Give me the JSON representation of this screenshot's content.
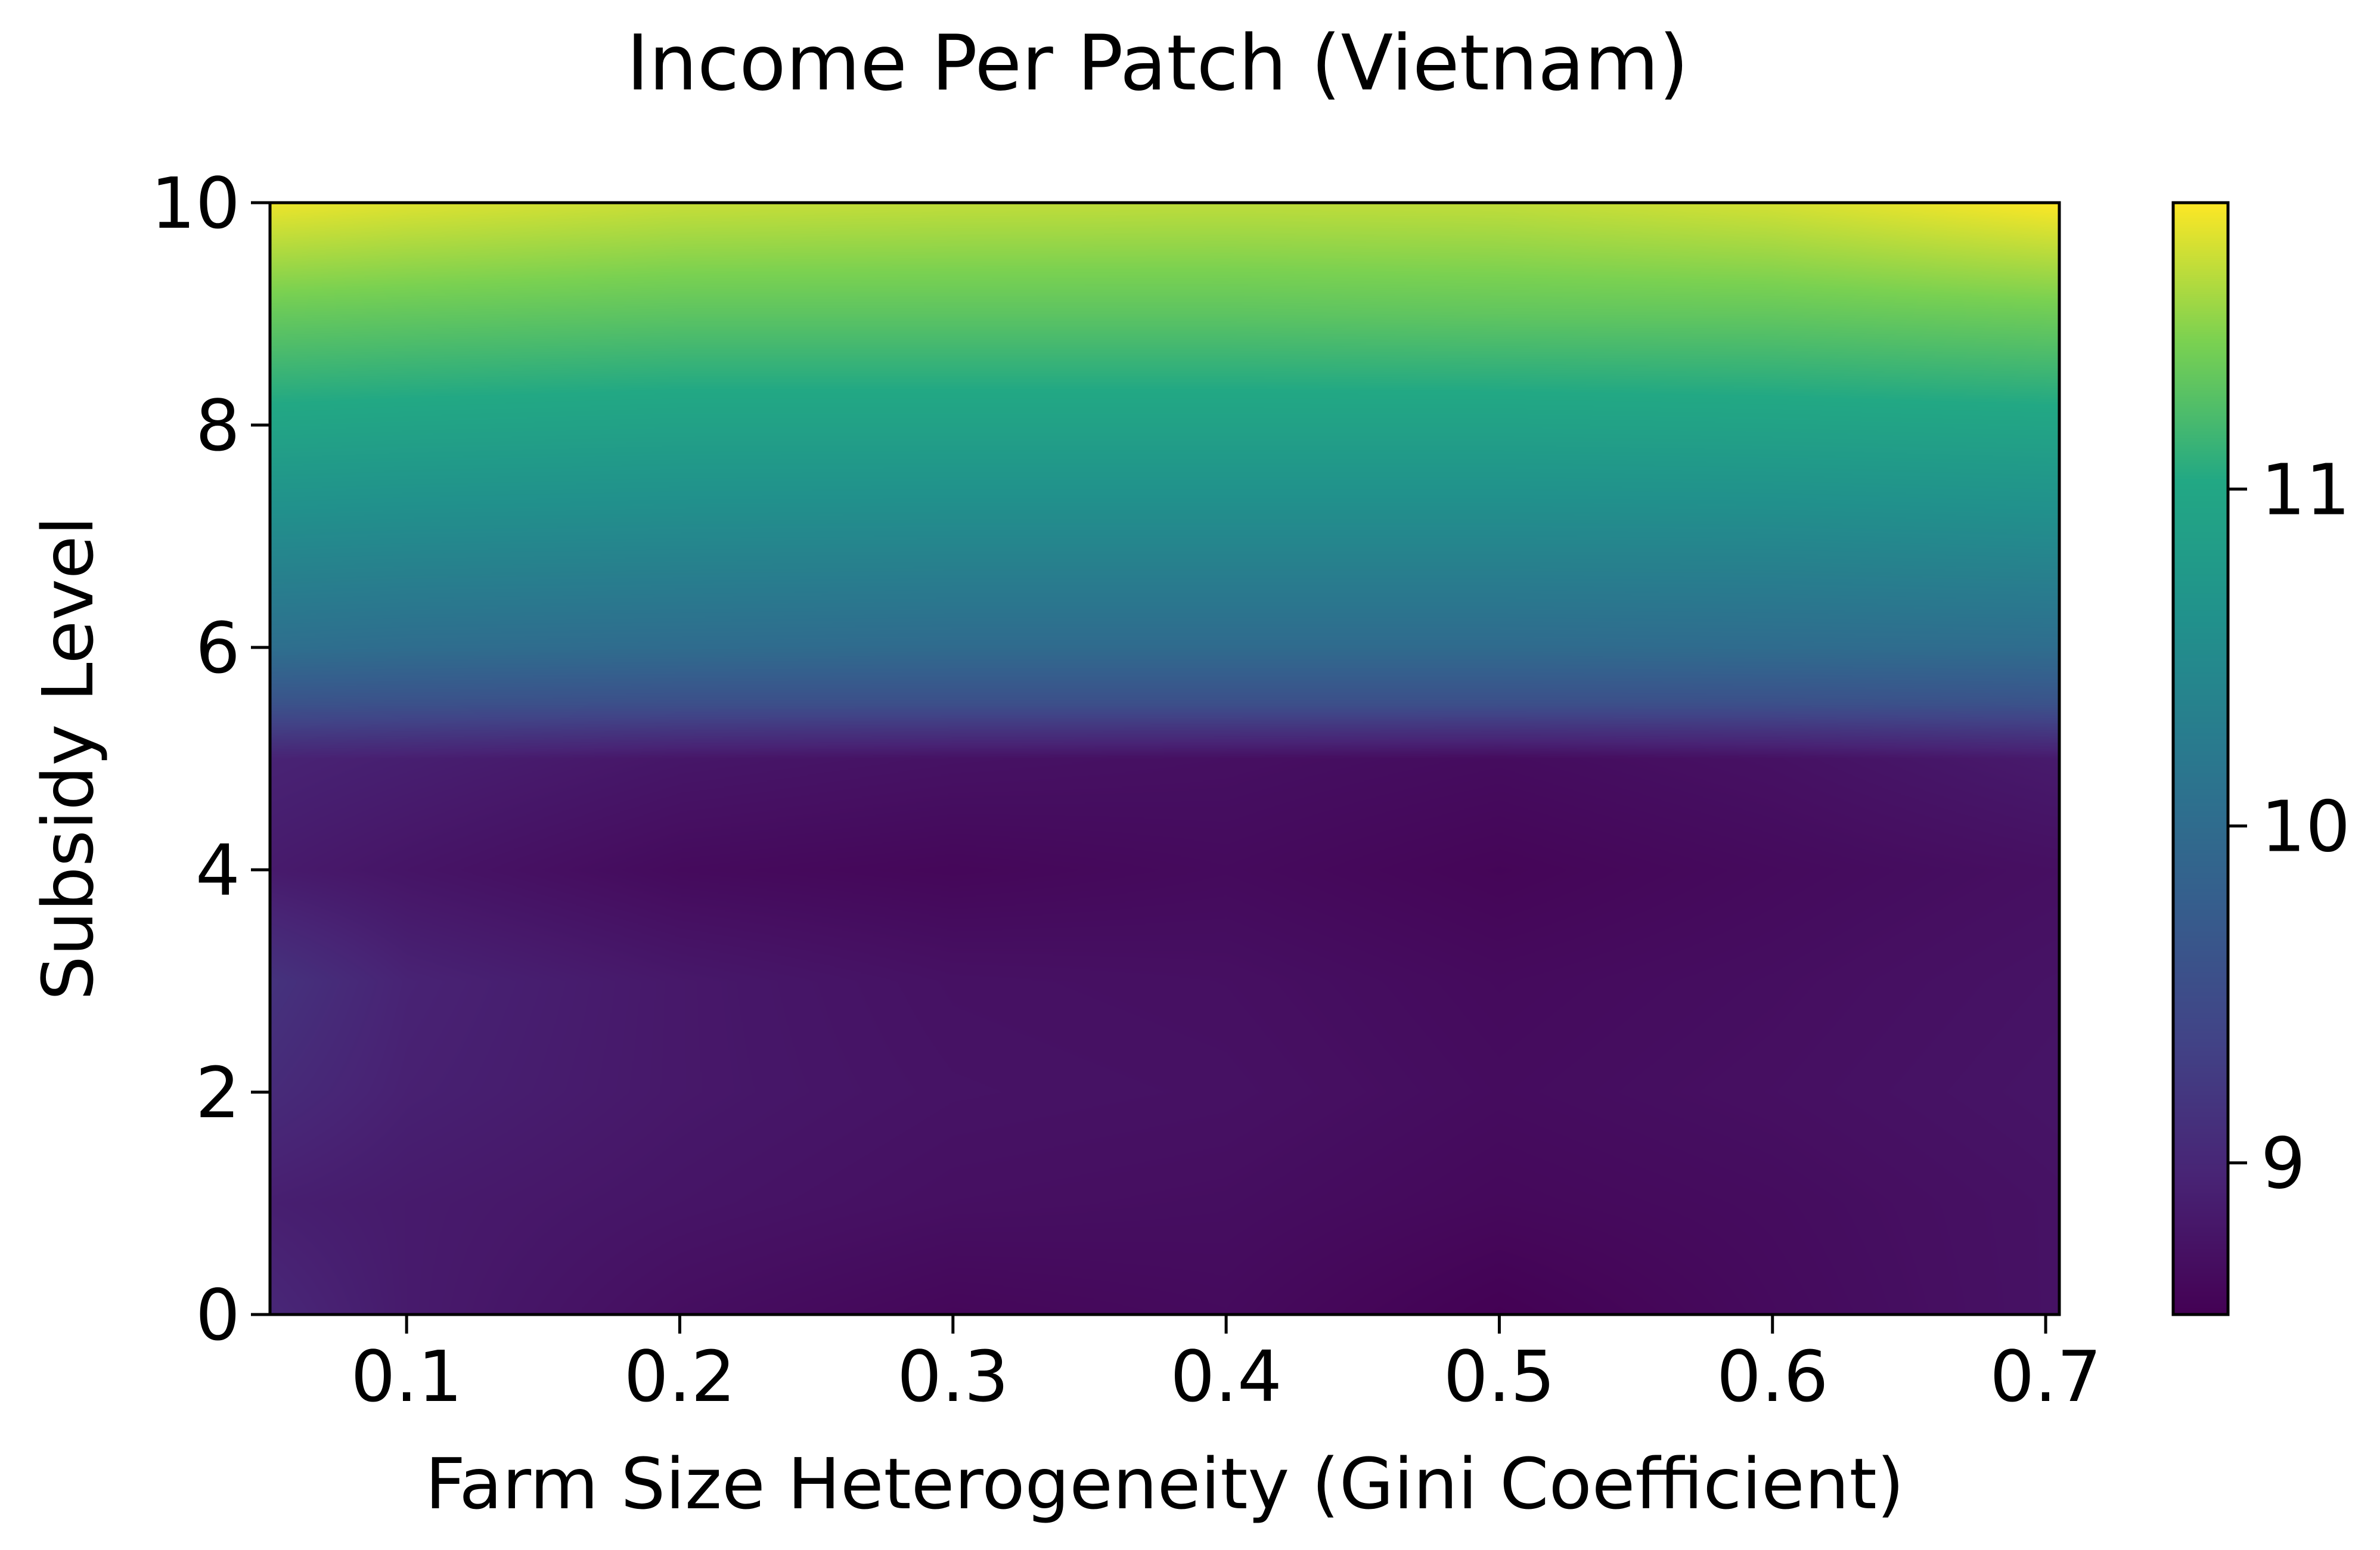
{
  "chart_data": {
    "type": "heatmap",
    "title": "Income Per Patch (Vietnam)",
    "xlabel": "Farm Size Heterogeneity (Gini Coefficient)",
    "ylabel": "Subsidy Level",
    "xlim": [
      0.05,
      0.705
    ],
    "ylim": [
      0,
      10
    ],
    "x_ticks": [
      0.1,
      0.2,
      0.3,
      0.4,
      0.5,
      0.6,
      0.7
    ],
    "x_tick_labels": [
      "0.1",
      "0.2",
      "0.3",
      "0.4",
      "0.5",
      "0.6",
      "0.7"
    ],
    "y_ticks": [
      0,
      2,
      4,
      6,
      8,
      10
    ],
    "y_tick_labels": [
      "0",
      "2",
      "4",
      "6",
      "8",
      "10"
    ],
    "colorbar": {
      "colormap": "viridis",
      "vmin": 8.55,
      "vmax": 11.85,
      "ticks": [
        9,
        10,
        11
      ],
      "tick_labels": [
        "9",
        "10",
        "11"
      ]
    },
    "x": [
      0.05,
      0.1,
      0.2,
      0.3,
      0.4,
      0.5,
      0.6,
      0.705
    ],
    "y": [
      0,
      1,
      2,
      3,
      4,
      5,
      5.5,
      6,
      7,
      8,
      9,
      10
    ],
    "z": [
      [
        9.0,
        8.85,
        8.7,
        8.62,
        8.66,
        8.55,
        8.66,
        8.75
      ],
      [
        8.9,
        8.85,
        8.78,
        8.72,
        8.7,
        8.64,
        8.68,
        8.75
      ],
      [
        9.05,
        8.92,
        8.82,
        8.76,
        8.74,
        8.68,
        8.72,
        8.78
      ],
      [
        9.15,
        8.95,
        8.82,
        8.74,
        8.72,
        8.66,
        8.7,
        8.76
      ],
      [
        8.85,
        8.78,
        8.66,
        8.62,
        8.66,
        8.6,
        8.66,
        8.72
      ],
      [
        8.95,
        8.9,
        8.8,
        8.75,
        8.72,
        8.68,
        8.74,
        8.85
      ],
      [
        9.6,
        9.58,
        9.55,
        9.55,
        9.55,
        9.55,
        9.56,
        9.6
      ],
      [
        10.05,
        10.02,
        10.0,
        9.98,
        9.98,
        9.98,
        10.0,
        10.02
      ],
      [
        10.5,
        10.48,
        10.46,
        10.45,
        10.45,
        10.45,
        10.46,
        10.5
      ],
      [
        10.95,
        10.93,
        10.9,
        10.9,
        10.9,
        10.9,
        10.92,
        10.95
      ],
      [
        11.35,
        11.33,
        11.3,
        11.3,
        11.3,
        11.32,
        11.33,
        11.38
      ],
      [
        11.8,
        11.75,
        11.68,
        11.66,
        11.65,
        11.66,
        11.72,
        11.85
      ]
    ]
  }
}
